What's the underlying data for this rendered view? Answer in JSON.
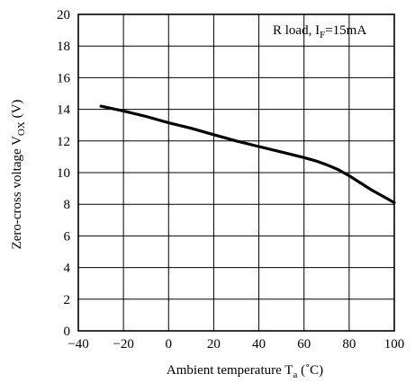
{
  "chart_data": {
    "type": "line",
    "annotation": {
      "text": "R load, I",
      "sub": "F",
      "rest": "=15mA"
    },
    "xlabel": {
      "text": "Ambient temperature T",
      "sub": "a",
      "rest": " (˚C)"
    },
    "ylabel": {
      "text": "Zero-cross voltage V",
      "sub": "OX",
      "rest": " (V)"
    },
    "xlim": [
      -40,
      100
    ],
    "ylim": [
      0,
      20
    ],
    "xticks": [
      -40,
      -20,
      0,
      20,
      40,
      60,
      80,
      100
    ],
    "yticks": [
      0,
      2,
      4,
      6,
      8,
      10,
      12,
      14,
      16,
      18,
      20
    ],
    "grid": true,
    "series": [
      {
        "x": [
          -30,
          -20,
          -10,
          0,
          10,
          20,
          30,
          40,
          50,
          60,
          65,
          70,
          75,
          80,
          90,
          100
        ],
        "y": [
          14.2,
          13.9,
          13.55,
          13.15,
          12.8,
          12.4,
          12.0,
          11.65,
          11.3,
          10.95,
          10.75,
          10.5,
          10.2,
          9.8,
          8.9,
          8.1
        ]
      }
    ]
  }
}
